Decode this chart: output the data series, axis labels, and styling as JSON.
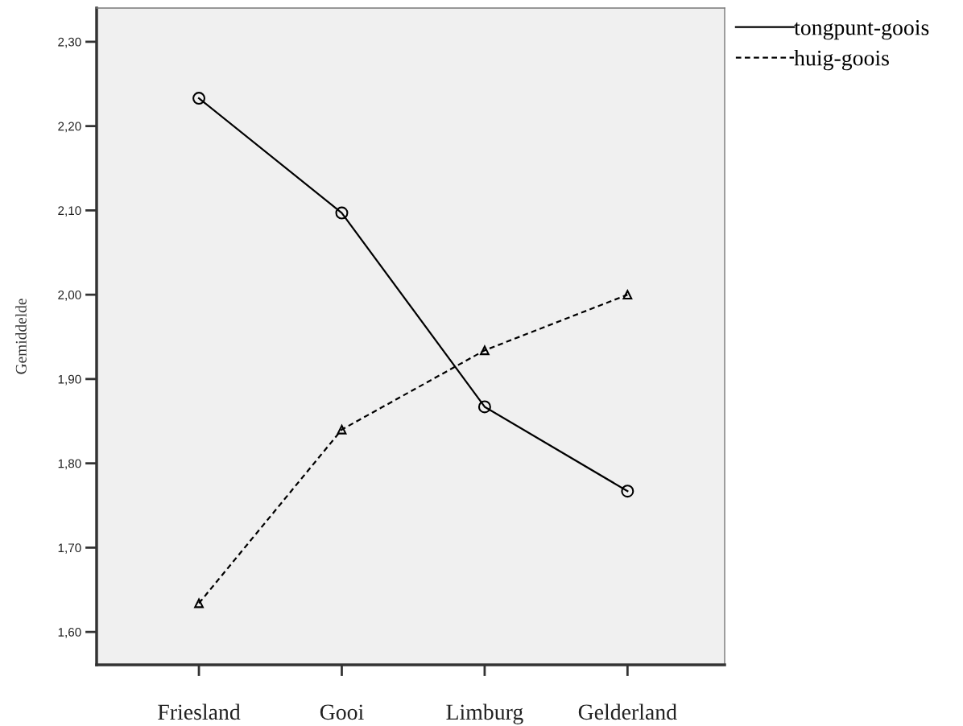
{
  "chart_data": {
    "type": "line",
    "ylabel": "Gemiddelde",
    "categories": [
      "Friesland",
      "Gooi",
      "Limburg",
      "Gelderland"
    ],
    "series": [
      {
        "name": "tongpunt-goois",
        "color": "#000000",
        "values": [
          2.233,
          2.097,
          1.867,
          1.767
        ],
        "marker": "circle",
        "line_style": "solid"
      },
      {
        "name": "huig-goois",
        "color": "#000000",
        "values": [
          1.634,
          1.84,
          1.934,
          2.0
        ],
        "marker": "triangle",
        "line_style": "dashed"
      }
    ],
    "ylim": [
      1.561,
      2.34
    ],
    "yticks": [
      {
        "value": 1.6,
        "label": "1,60"
      },
      {
        "value": 1.7,
        "label": "1,70"
      },
      {
        "value": 1.8,
        "label": "1,80"
      },
      {
        "value": 1.9,
        "label": "1,90"
      },
      {
        "value": 2.0,
        "label": "2,00"
      },
      {
        "value": 2.1,
        "label": "2,10"
      },
      {
        "value": 2.2,
        "label": "2,20"
      },
      {
        "value": 2.3,
        "label": "2,30"
      }
    ],
    "grid": false,
    "legend": "top right"
  }
}
